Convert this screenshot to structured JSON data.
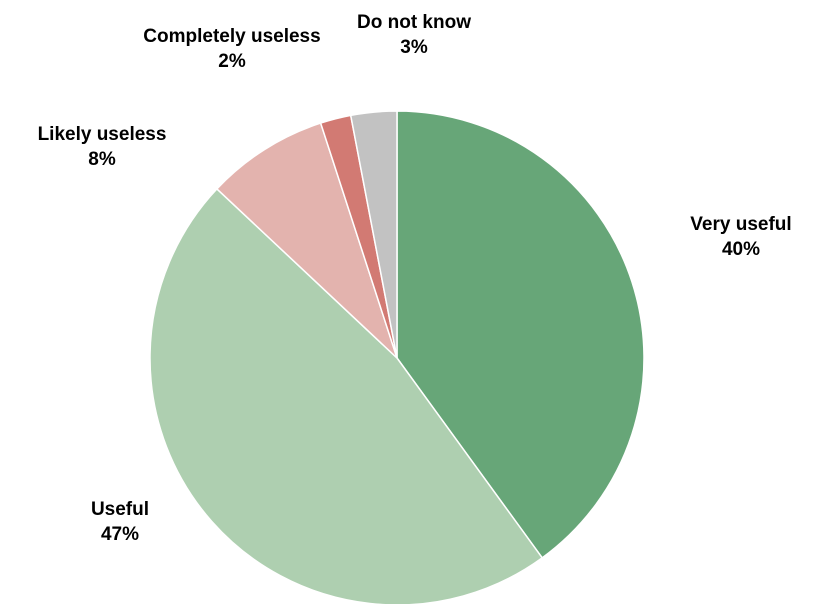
{
  "chart_data": {
    "type": "pie",
    "title": "",
    "slices": [
      {
        "label": "Very useful",
        "value": 40,
        "value_label": "40%",
        "color": "#67a678"
      },
      {
        "label": "Useful",
        "value": 47,
        "value_label": "47%",
        "color": "#aecfb0"
      },
      {
        "label": "Likely useless",
        "value": 8,
        "value_label": "8%",
        "color": "#e3b3ae"
      },
      {
        "label": "Completely useless",
        "value": 2,
        "value_label": "2%",
        "color": "#d27a73"
      },
      {
        "label": "Do not know",
        "value": 3,
        "value_label": "3%",
        "color": "#c2c2c2"
      }
    ],
    "start_angle_deg": 0,
    "direction": "clockwise",
    "legend": "none"
  }
}
